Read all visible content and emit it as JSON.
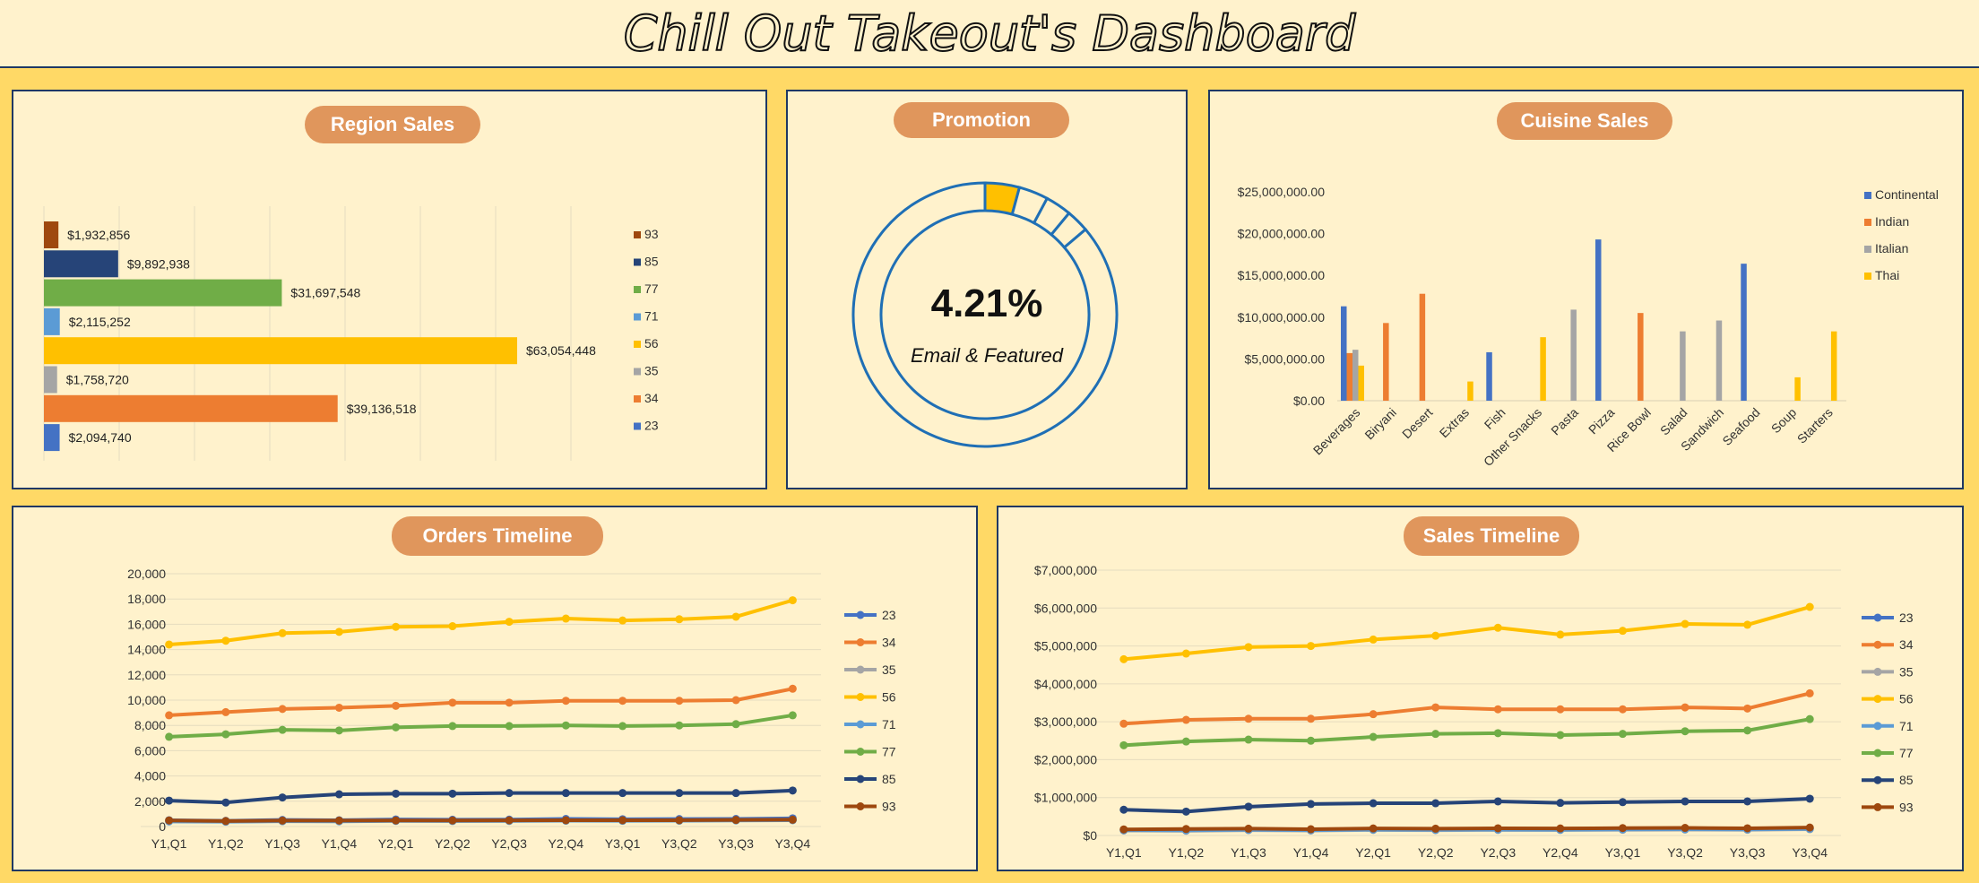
{
  "title": "Chill Out Takeout's Dashboard",
  "colors": {
    "23": "#4472C4",
    "34": "#ED7D31",
    "35": "#A5A5A5",
    "56": "#FFC000",
    "71": "#5B9BD5",
    "77": "#70AD47",
    "85": "#264478",
    "93": "#9E480E",
    "Continental": "#4472C4",
    "Indian": "#ED7D31",
    "Italian": "#A5A5A5",
    "Thai": "#FFC000",
    "promo_fill": "#FFC000",
    "promo_ring": "#1F6FB5"
  },
  "region_sales": {
    "title": "Region Sales",
    "chart_data": {
      "type": "bar",
      "orientation": "horizontal",
      "categories": [
        "93",
        "85",
        "77",
        "71",
        "56",
        "35",
        "34",
        "23"
      ],
      "values": [
        1932856,
        9892938,
        31697548,
        2115252,
        63054448,
        1758720,
        39136518,
        2094740
      ],
      "data_labels": [
        "$1,932,856",
        "$9,892,938",
        "$31,697,548",
        "$2,115,252",
        "$63,054,448",
        "$1,758,720",
        "$39,136,518",
        "$2,094,740"
      ],
      "legend": [
        "93",
        "85",
        "77",
        "71",
        "56",
        "35",
        "34",
        "23"
      ],
      "xlim": [
        0,
        70000000
      ],
      "grid": true,
      "legend_position": "right"
    }
  },
  "promotion": {
    "title": "Promotion",
    "chart_data": {
      "type": "pie",
      "style": "doughnut",
      "values": [
        4.21,
        3.6,
        3.2,
        2.8,
        86.19
      ],
      "highlight_index": 0
    },
    "value_label": "4.21%",
    "caption": "Email & Featured"
  },
  "cuisine_sales": {
    "title": "Cuisine Sales",
    "chart_data": {
      "type": "bar",
      "categories": [
        "Beverages",
        "Biryani",
        "Desert",
        "Extras",
        "Fish",
        "Other Snacks",
        "Pasta",
        "Pizza",
        "Rice Bowl",
        "Salad",
        "Sandwich",
        "Seafood",
        "Soup",
        "Starters"
      ],
      "series": [
        {
          "name": "Continental",
          "values": [
            11300000,
            0,
            0,
            0,
            5800000,
            0,
            0,
            19300000,
            0,
            0,
            0,
            16400000,
            0,
            0
          ]
        },
        {
          "name": "Indian",
          "values": [
            5700000,
            9300000,
            12800000,
            0,
            0,
            0,
            0,
            0,
            10500000,
            0,
            0,
            0,
            0,
            0
          ]
        },
        {
          "name": "Italian",
          "values": [
            6100000,
            0,
            0,
            0,
            0,
            0,
            10900000,
            0,
            0,
            8300000,
            9600000,
            0,
            0,
            0
          ]
        },
        {
          "name": "Thai",
          "values": [
            4200000,
            0,
            0,
            2300000,
            0,
            7600000,
            0,
            0,
            0,
            0,
            0,
            0,
            2800000,
            8300000
          ]
        }
      ],
      "ylim": [
        0,
        25000000
      ],
      "yticks": [
        "$0.00",
        "$5,000,000.00",
        "$10,000,000.00",
        "$15,000,000.00",
        "$20,000,000.00",
        "$25,000,000.00"
      ],
      "grid": false,
      "legend_position": "right"
    }
  },
  "orders_timeline": {
    "title": "Orders Timeline",
    "chart_data": {
      "type": "line",
      "x": [
        "Y1,Q1",
        "Y1,Q2",
        "Y1,Q3",
        "Y1,Q4",
        "Y2,Q1",
        "Y2,Q2",
        "Y2,Q3",
        "Y2,Q4",
        "Y3,Q1",
        "Y3,Q2",
        "Y3,Q3",
        "Y3,Q4"
      ],
      "series": [
        {
          "name": "23",
          "values": [
            500,
            450,
            520,
            500,
            560,
            540,
            550,
            600,
            580,
            590,
            600,
            650
          ]
        },
        {
          "name": "34",
          "values": [
            8800,
            9050,
            9300,
            9400,
            9550,
            9800,
            9800,
            9950,
            9950,
            9950,
            10000,
            10900
          ]
        },
        {
          "name": "35",
          "values": [
            420,
            400,
            430,
            420,
            460,
            450,
            450,
            480,
            470,
            480,
            500,
            520
          ]
        },
        {
          "name": "56",
          "values": [
            14400,
            14700,
            15300,
            15400,
            15800,
            15850,
            16200,
            16450,
            16300,
            16400,
            16600,
            17900
          ]
        },
        {
          "name": "71",
          "values": [
            400,
            380,
            420,
            410,
            440,
            430,
            440,
            460,
            450,
            460,
            480,
            500
          ]
        },
        {
          "name": "77",
          "values": [
            7100,
            7300,
            7650,
            7600,
            7850,
            7950,
            7950,
            8000,
            7950,
            8000,
            8100,
            8800
          ]
        },
        {
          "name": "85",
          "values": [
            2050,
            1900,
            2300,
            2550,
            2600,
            2600,
            2650,
            2650,
            2650,
            2650,
            2650,
            2850
          ]
        },
        {
          "name": "93",
          "values": [
            480,
            430,
            470,
            470,
            480,
            480,
            490,
            500,
            500,
            500,
            520,
            540
          ]
        }
      ],
      "ylim": [
        0,
        20000
      ],
      "yticks": [
        "0",
        "2,000",
        "4,000",
        "6,000",
        "8,000",
        "10,000",
        "12,000",
        "14,000",
        "16,000",
        "18,000",
        "20,000"
      ],
      "grid": true,
      "legend_position": "right"
    }
  },
  "sales_timeline": {
    "title": "Sales Timeline",
    "chart_data": {
      "type": "line",
      "x": [
        "Y1,Q1",
        "Y1,Q2",
        "Y1,Q3",
        "Y1,Q4",
        "Y2,Q1",
        "Y2,Q2",
        "Y2,Q3",
        "Y2,Q4",
        "Y3,Q1",
        "Y3,Q2",
        "Y3,Q3",
        "Y3,Q4"
      ],
      "series": [
        {
          "name": "23",
          "values": [
            150000,
            145000,
            160000,
            155000,
            170000,
            165000,
            170000,
            165000,
            175000,
            180000,
            170000,
            190000
          ]
        },
        {
          "name": "34",
          "values": [
            2950000,
            3050000,
            3080000,
            3080000,
            3200000,
            3380000,
            3330000,
            3330000,
            3330000,
            3380000,
            3350000,
            3750000
          ]
        },
        {
          "name": "35",
          "values": [
            130000,
            125000,
            140000,
            130000,
            145000,
            140000,
            145000,
            145000,
            150000,
            155000,
            150000,
            165000
          ]
        },
        {
          "name": "56",
          "values": [
            4650000,
            4800000,
            4970000,
            5000000,
            5170000,
            5270000,
            5480000,
            5300000,
            5400000,
            5580000,
            5560000,
            6030000
          ]
        },
        {
          "name": "71",
          "values": [
            140000,
            135000,
            150000,
            140000,
            155000,
            150000,
            155000,
            150000,
            160000,
            165000,
            160000,
            175000
          ]
        },
        {
          "name": "77",
          "values": [
            2380000,
            2480000,
            2530000,
            2500000,
            2600000,
            2680000,
            2700000,
            2650000,
            2680000,
            2750000,
            2770000,
            3070000
          ]
        },
        {
          "name": "85",
          "values": [
            680000,
            630000,
            760000,
            830000,
            850000,
            850000,
            900000,
            860000,
            880000,
            900000,
            900000,
            970000
          ]
        },
        {
          "name": "93",
          "values": [
            160000,
            170000,
            180000,
            165000,
            185000,
            180000,
            190000,
            185000,
            195000,
            200000,
            190000,
            210000
          ]
        }
      ],
      "ylim": [
        0,
        7000000
      ],
      "yticks": [
        "$0",
        "$1,000,000",
        "$2,000,000",
        "$3,000,000",
        "$4,000,000",
        "$5,000,000",
        "$6,000,000",
        "$7,000,000"
      ],
      "grid": true,
      "legend_position": "right"
    }
  }
}
